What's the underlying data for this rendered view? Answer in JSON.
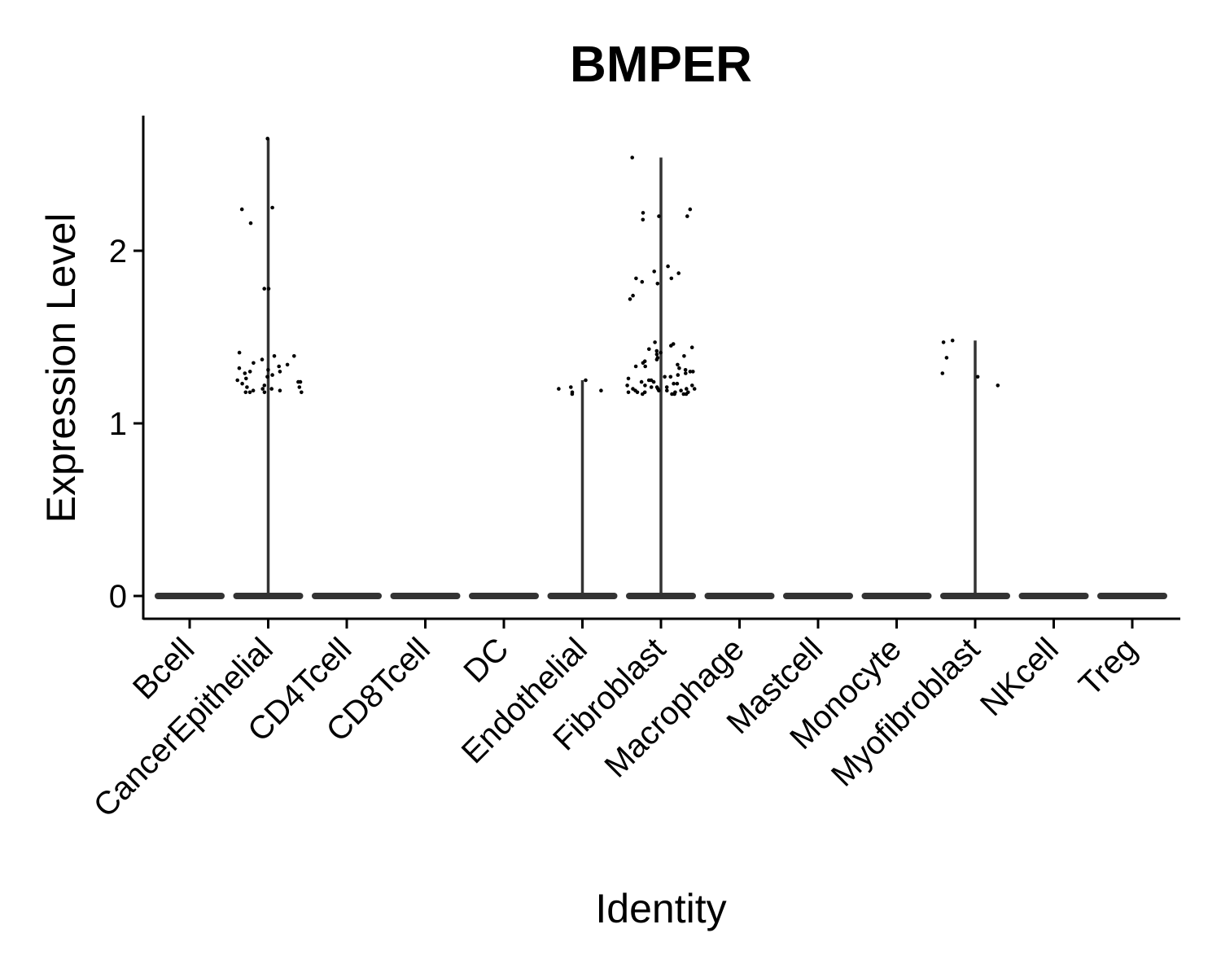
{
  "chart_data": {
    "type": "violin",
    "title": "BMPER",
    "xlabel": "Identity",
    "ylabel": "Expression Level",
    "ylim": [
      -0.13,
      2.78
    ],
    "yticks": [
      0,
      1,
      2
    ],
    "categories": [
      "Bcell",
      "CancerEpithelial",
      "CD4Tcell",
      "CD8Tcell",
      "DC",
      "Endothelial",
      "Fibroblast",
      "Macrophage",
      "Mastcell",
      "Monocyte",
      "Myofibroblast",
      "NKcell",
      "Treg"
    ],
    "max_values": [
      0,
      2.65,
      0,
      0,
      0,
      1.25,
      2.54,
      0,
      0,
      0,
      1.48,
      0,
      0
    ],
    "grid": false,
    "legend": "none",
    "points": [
      {
        "category": "CancerEpithelial",
        "values": [
          2.65,
          2.25,
          2.24,
          2.16,
          1.78,
          1.78,
          1.41,
          1.39,
          1.39,
          1.37,
          1.35,
          1.34,
          1.33,
          1.32,
          1.31,
          1.3,
          1.3,
          1.29,
          1.28,
          1.27,
          1.26,
          1.25,
          1.24,
          1.24,
          1.23,
          1.22,
          1.21,
          1.21,
          1.2,
          1.2,
          1.19,
          1.19,
          1.18,
          1.18,
          1.18,
          1.18
        ]
      },
      {
        "category": "Endothelial",
        "values": [
          1.25,
          1.21,
          1.2,
          1.19,
          1.18,
          1.17
        ]
      },
      {
        "category": "Fibroblast",
        "values": [
          2.54,
          2.24,
          2.22,
          2.2,
          2.2,
          2.18,
          1.91,
          1.88,
          1.87,
          1.84,
          1.84,
          1.82,
          1.81,
          1.74,
          1.72,
          1.47,
          1.46,
          1.45,
          1.44,
          1.43,
          1.42,
          1.41,
          1.4,
          1.39,
          1.38,
          1.37,
          1.36,
          1.35,
          1.34,
          1.33,
          1.33,
          1.32,
          1.31,
          1.3,
          1.3,
          1.29,
          1.28,
          1.27,
          1.27,
          1.26,
          1.25,
          1.25,
          1.24,
          1.24,
          1.23,
          1.23,
          1.22,
          1.22,
          1.22,
          1.21,
          1.21,
          1.21,
          1.2,
          1.2,
          1.2,
          1.2,
          1.19,
          1.19,
          1.19,
          1.19,
          1.18,
          1.18,
          1.18,
          1.18,
          1.18,
          1.17,
          1.17,
          1.17,
          1.17,
          1.17
        ]
      },
      {
        "category": "Myofibroblast",
        "values": [
          1.48,
          1.47,
          1.38,
          1.29,
          1.27,
          1.22
        ]
      }
    ]
  },
  "colors": {
    "violin": "#333333",
    "points": "#000000",
    "axis": "#000000",
    "background": "#ffffff"
  }
}
